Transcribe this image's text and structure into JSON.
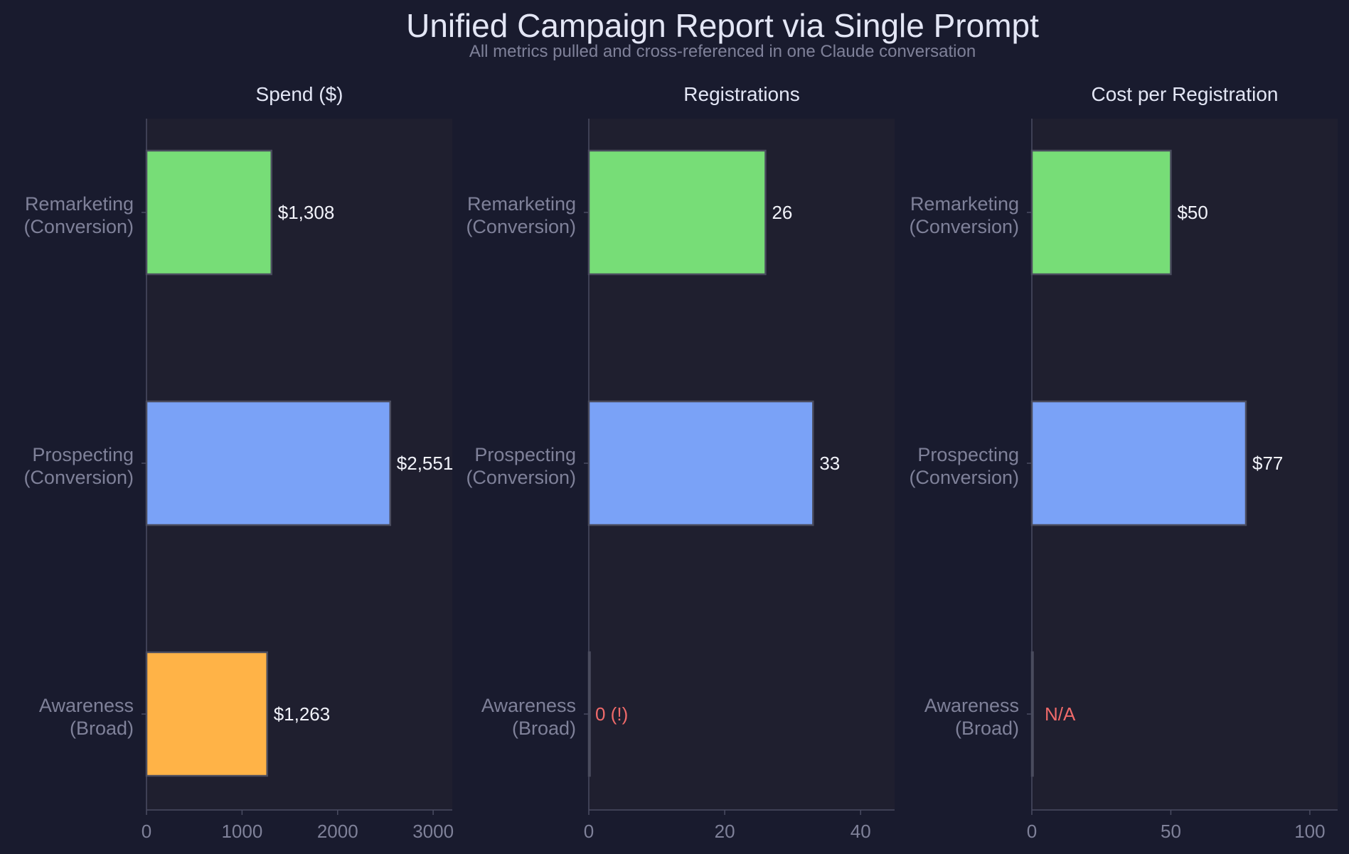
{
  "page": {
    "title": "Unified Campaign Report via Single Prompt",
    "subtitle": "All metrics pulled and cross-referenced in one Claude conversation"
  },
  "colors": {
    "background": "#191b2e",
    "plot_background": "#1f1f2f",
    "title_text": "#e3e6f5",
    "muted_text": "#7f8199",
    "axis_line": "#4a4c62",
    "bar_edge": "#4a4c5e",
    "value_label": "#f2f3fa",
    "alert_label": "#f06a6a"
  },
  "chart_data": [
    {
      "type": "bar",
      "orientation": "horizontal",
      "title": "Spend ($)",
      "categories": [
        "Remarketing\n(Conversion)",
        "Prospecting\n(Conversion)",
        "Awareness\n(Broad)"
      ],
      "values": [
        1308,
        2551,
        1263
      ],
      "data_labels": [
        "$1,308",
        "$2,551",
        "$1,263"
      ],
      "alert": [
        false,
        false,
        false
      ],
      "bar_colors": [
        "#77dd77",
        "#7aa2f7",
        "#ffb347"
      ],
      "xlim": [
        0,
        3200
      ],
      "xticks": [
        0,
        1000,
        2000,
        3000
      ],
      "grid": false
    },
    {
      "type": "bar",
      "orientation": "horizontal",
      "title": "Registrations",
      "categories": [
        "Remarketing\n(Conversion)",
        "Prospecting\n(Conversion)",
        "Awareness\n(Broad)"
      ],
      "values": [
        26,
        33,
        0
      ],
      "data_labels": [
        "26",
        "33",
        "0 (!)"
      ],
      "alert": [
        false,
        false,
        true
      ],
      "bar_colors": [
        "#77dd77",
        "#7aa2f7",
        "#ffb347"
      ],
      "xlim": [
        0,
        45
      ],
      "xticks": [
        0,
        20,
        40
      ],
      "grid": false
    },
    {
      "type": "bar",
      "orientation": "horizontal",
      "title": "Cost per Registration",
      "categories": [
        "Remarketing\n(Conversion)",
        "Prospecting\n(Conversion)",
        "Awareness\n(Broad)"
      ],
      "values": [
        50,
        77,
        0
      ],
      "data_labels": [
        "$50",
        "$77",
        "N/A"
      ],
      "alert": [
        false,
        false,
        true
      ],
      "bar_colors": [
        "#77dd77",
        "#7aa2f7",
        "#ffb347"
      ],
      "xlim": [
        0,
        110
      ],
      "xticks": [
        0,
        50,
        100
      ],
      "grid": false
    }
  ]
}
